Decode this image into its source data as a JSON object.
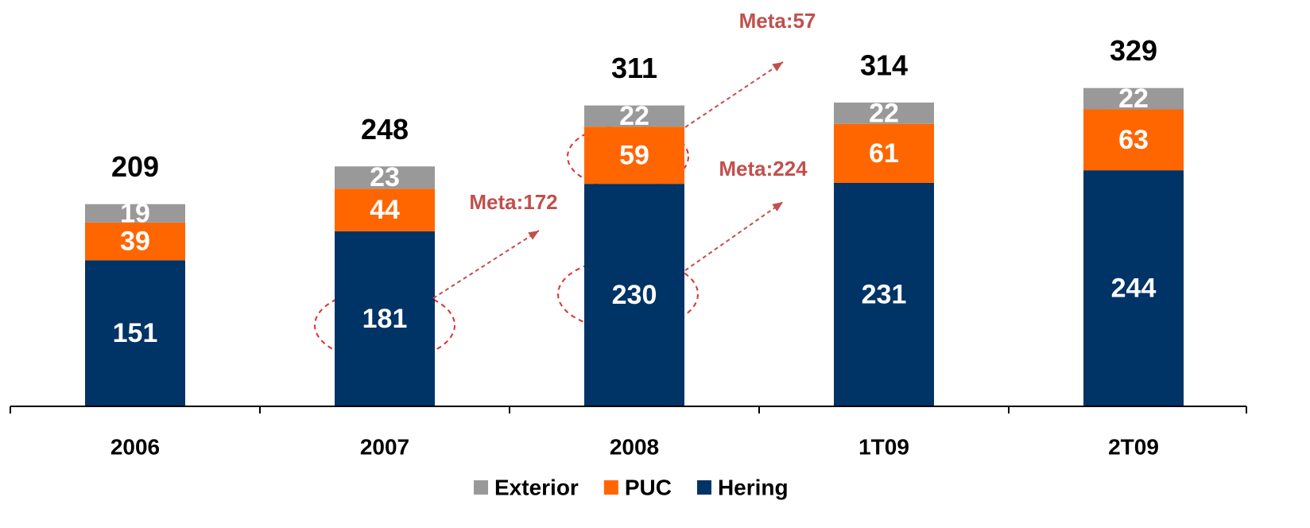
{
  "chart_data": {
    "type": "stacked_bar",
    "categories": [
      "2006",
      "2007",
      "2008",
      "1T09",
      "2T09"
    ],
    "series": [
      {
        "name": "Hering",
        "color": "#003366",
        "values": [
          151,
          181,
          230,
          231,
          244
        ]
      },
      {
        "name": "PUC",
        "color": "#ff6600",
        "values": [
          39,
          44,
          59,
          61,
          63
        ]
      },
      {
        "name": "Exterior",
        "color": "#999999",
        "values": [
          19,
          23,
          22,
          22,
          22
        ]
      }
    ],
    "totals": [
      209,
      248,
      311,
      314,
      329
    ],
    "annotations": [
      "Meta:172",
      "Meta:224",
      "Meta:57"
    ],
    "annotation_color": "#c0504d",
    "ylim": [
      0,
      420
    ]
  }
}
